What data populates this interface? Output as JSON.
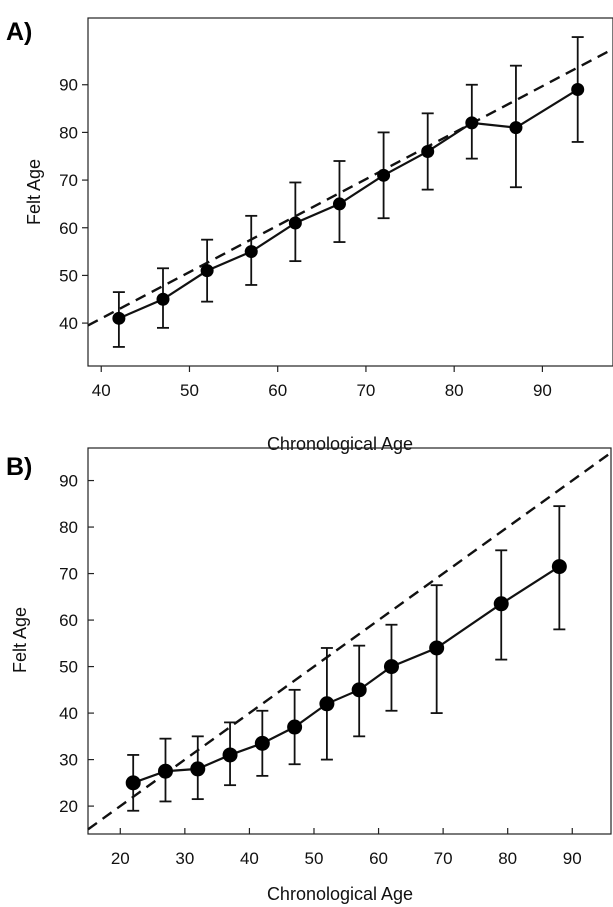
{
  "chart_data": [
    {
      "panel": "A)",
      "type": "line",
      "xlabel": "Chronological Age",
      "ylabel": "Felt Age",
      "xlim": [
        38.5,
        98
      ],
      "ylim": [
        31,
        104
      ],
      "x_ticks": [
        40,
        50,
        60,
        70,
        80,
        90
      ],
      "y_ticks": [
        40,
        50,
        60,
        70,
        80,
        90
      ],
      "grid": false,
      "series": [
        {
          "x": [
            42,
            47,
            52,
            57,
            62,
            67,
            72,
            77,
            82,
            87,
            94
          ],
          "y": [
            41,
            45,
            51,
            55,
            61,
            65,
            71,
            76,
            82,
            81,
            89
          ],
          "err_low": [
            35,
            39,
            44.5,
            48,
            53,
            57,
            62,
            68,
            74.5,
            68.5,
            78
          ],
          "err_high": [
            46.5,
            51.5,
            57.5,
            62.5,
            69.5,
            74,
            80,
            84,
            90,
            94,
            100
          ]
        }
      ],
      "reference_line": {
        "style": "dashed",
        "x": [
          38.5,
          98
        ],
        "y": [
          39.5,
          97.5
        ]
      }
    },
    {
      "panel": "B)",
      "type": "line",
      "xlabel": "Chronological Age",
      "ylabel": "Felt Age",
      "xlim": [
        15,
        96
      ],
      "ylim": [
        14,
        97
      ],
      "x_ticks": [
        20,
        30,
        40,
        50,
        60,
        70,
        80,
        90
      ],
      "y_ticks": [
        20,
        30,
        40,
        50,
        60,
        70,
        80,
        90
      ],
      "grid": false,
      "series": [
        {
          "x": [
            22,
            27,
            32,
            37,
            42,
            47,
            52,
            57,
            62,
            69,
            79,
            88
          ],
          "y": [
            25,
            27.5,
            28,
            31,
            33.5,
            37,
            42,
            45,
            50,
            54,
            63.5,
            71.5
          ],
          "err_low": [
            19,
            21,
            21.5,
            24.5,
            26.5,
            29,
            30,
            35,
            40.5,
            40,
            51.5,
            58
          ],
          "err_high": [
            31,
            34.5,
            35,
            38,
            40.5,
            45,
            54,
            54.5,
            59,
            67.5,
            75,
            84.5
          ]
        }
      ],
      "reference_line": {
        "style": "dashed",
        "x": [
          15,
          96
        ],
        "y": [
          15,
          96
        ]
      }
    }
  ]
}
